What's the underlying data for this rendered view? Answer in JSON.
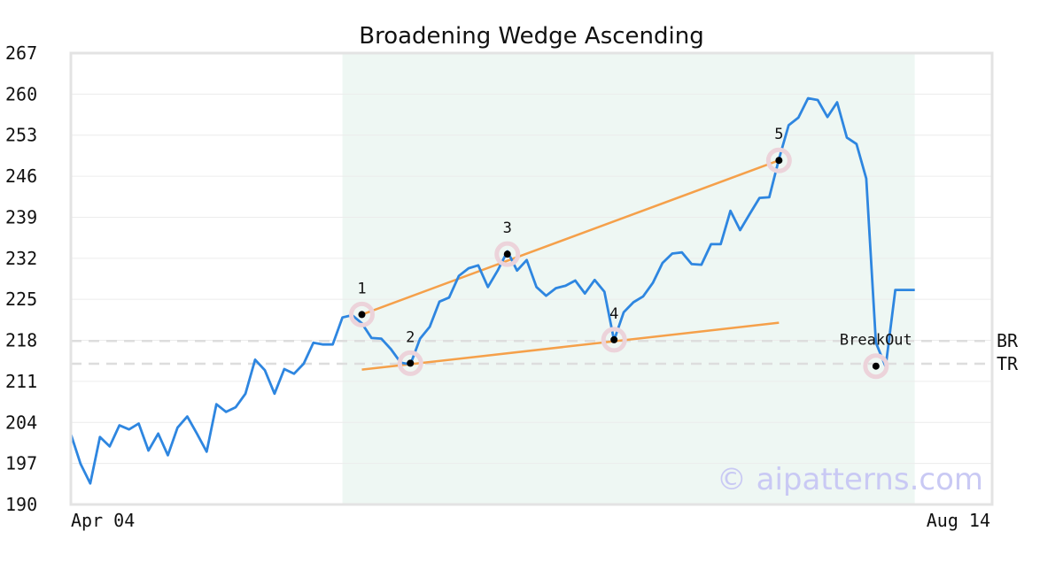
{
  "chart_data": {
    "type": "line",
    "title": "Broadening Wedge Ascending",
    "xlabel": "",
    "ylabel": "",
    "ylim": [
      190,
      267
    ],
    "y_ticks": [
      190,
      197,
      204,
      211,
      218,
      225,
      232,
      239,
      246,
      253,
      260,
      267
    ],
    "x_tick_labels": [
      "Apr 04",
      "Aug 14"
    ],
    "grid": "horizontal",
    "colors": {
      "price": "#2e86e0",
      "trendline": "#f5a04a",
      "pattern_zone": "#eef7f3",
      "level_line": "#dddddd",
      "marker_halo": "#ecd3da",
      "marker_dot": "#000000",
      "watermark": "#c9c9f4"
    },
    "price_series": [
      202,
      196.9,
      193.6,
      201.5,
      199.9,
      203.5,
      202.8,
      203.8,
      199.2,
      202.1,
      198.4,
      203.1,
      205.0,
      202.1,
      199,
      207.1,
      205.8,
      206.6,
      208.9,
      214.7,
      212.9,
      208.9,
      213.1,
      212.3,
      214,
      217.6,
      217.3,
      217.3,
      221.9,
      222.3,
      220.9,
      218.4,
      218.3,
      216.5,
      214.2,
      213.9,
      218.3,
      220.3,
      224.6,
      225.3,
      229,
      230.3,
      230.8,
      227.1,
      229.9,
      233.2,
      229.9,
      231.7,
      227.1,
      225.6,
      226.9,
      227.3,
      228.2,
      226,
      228.3,
      226.3,
      218,
      222.8,
      224.5,
      225.5,
      227.8,
      231.2,
      232.8,
      233,
      231,
      230.9,
      234.4,
      234.4,
      240.1,
      236.8,
      239.6,
      242.3,
      242.4,
      248.9,
      254.7,
      256,
      259.3,
      259,
      256.1,
      258.6,
      252.6,
      251.5,
      245.6,
      217.6,
      213.5,
      226.6,
      226.6,
      226.6
    ],
    "pattern_zone": {
      "start_index": 28,
      "end_index": 87
    },
    "pivots": [
      {
        "label": "1",
        "index": 30,
        "value": 222.4
      },
      {
        "label": "2",
        "index": 35,
        "value": 214.1
      },
      {
        "label": "3",
        "index": 45,
        "value": 232.7
      },
      {
        "label": "4",
        "index": 56,
        "value": 218.1
      },
      {
        "label": "5",
        "index": 73,
        "value": 248.7
      },
      {
        "label": "BreakOut",
        "index": 83,
        "value": 213.6
      }
    ],
    "trendlines": [
      {
        "name": "upper",
        "from": {
          "index": 30,
          "value": 222.4
        },
        "to": {
          "index": 73,
          "value": 248.7
        }
      },
      {
        "name": "lower",
        "from": {
          "index": 30,
          "value": 213.0
        },
        "to": {
          "index": 73,
          "value": 221.0
        }
      }
    ],
    "levels": [
      {
        "label": "BR",
        "value": 217.9
      },
      {
        "label": "TR",
        "value": 214.0
      }
    ],
    "watermark": "© aipatterns.com"
  }
}
